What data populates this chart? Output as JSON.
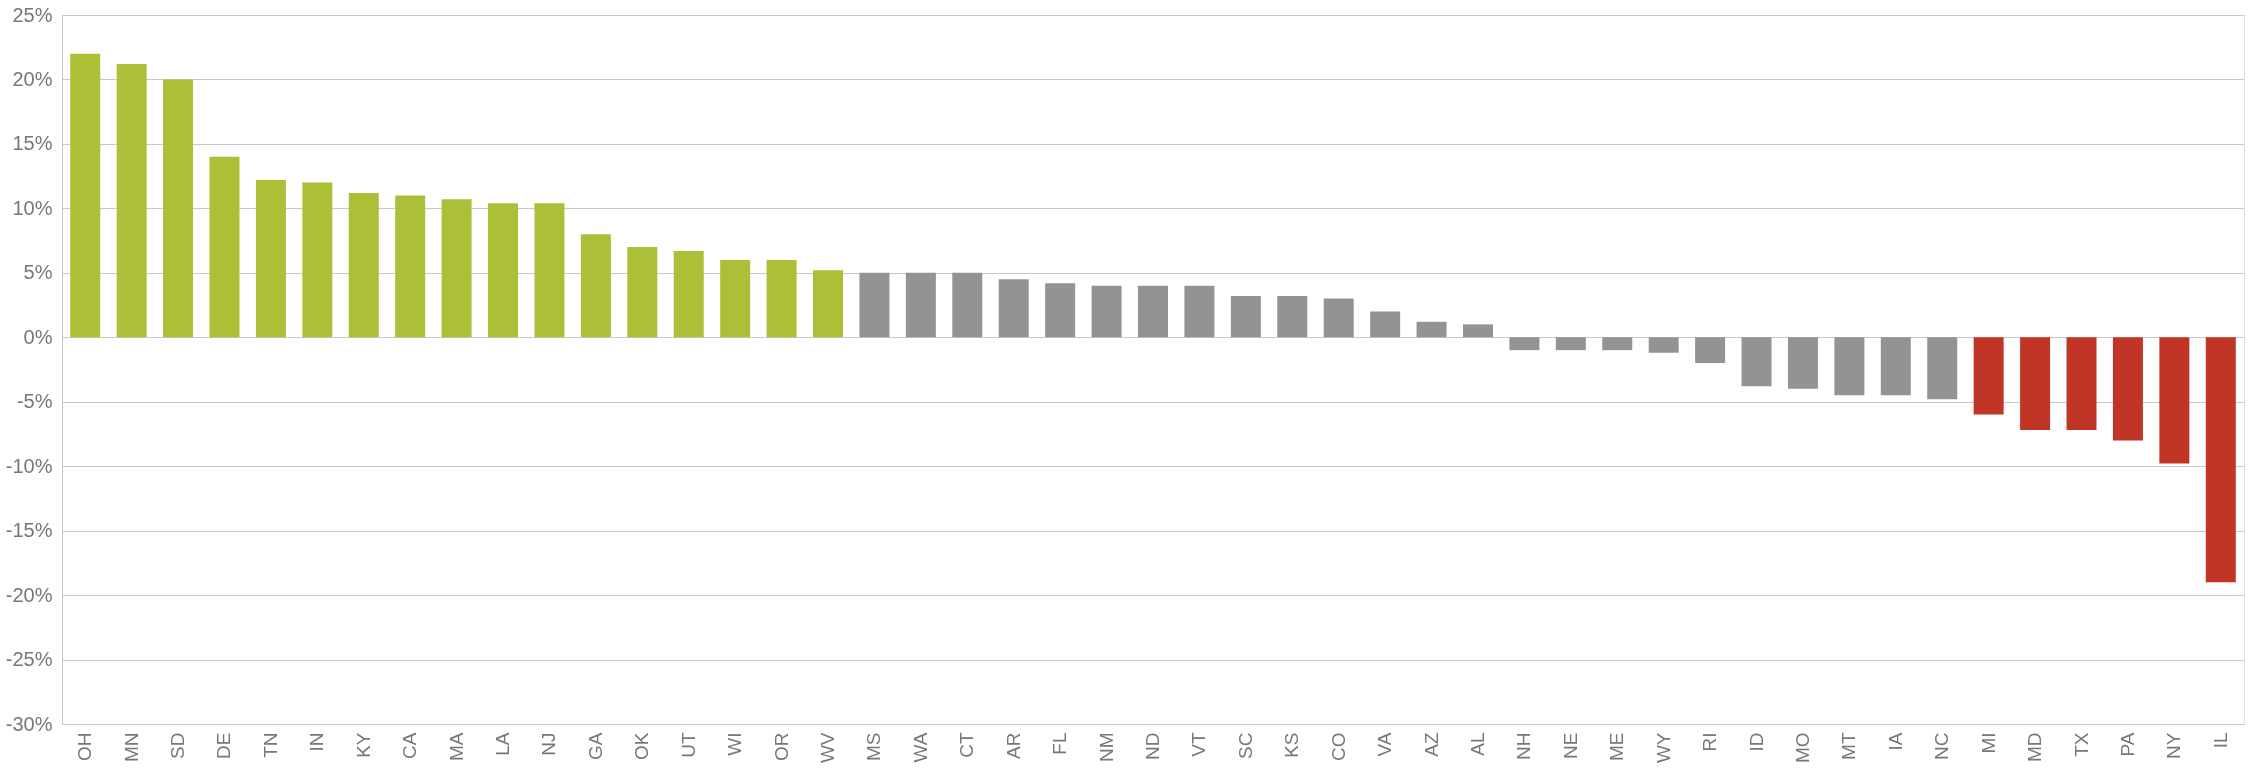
{
  "chart_data": {
    "type": "bar",
    "categories": [
      "OH",
      "MN",
      "SD",
      "DE",
      "TN",
      "IN",
      "KY",
      "CA",
      "MA",
      "LA",
      "NJ",
      "GA",
      "OK",
      "UT",
      "WI",
      "OR",
      "WV",
      "MS",
      "WA",
      "CT",
      "AR",
      "FL",
      "NM",
      "ND",
      "VT",
      "SC",
      "KS",
      "CO",
      "VA",
      "AZ",
      "AL",
      "NH",
      "NE",
      "ME",
      "WY",
      "RI",
      "ID",
      "MO",
      "MT",
      "IA",
      "NC",
      "MI",
      "MD",
      "TX",
      "PA",
      "NY",
      "IL"
    ],
    "values": [
      22,
      21.2,
      20,
      14,
      12.2,
      12,
      11.2,
      11,
      10.7,
      10.4,
      10.4,
      8,
      7,
      6.7,
      6,
      6,
      5.2,
      5,
      5,
      5,
      4.5,
      4.2,
      4,
      4,
      4,
      3.2,
      3.2,
      3,
      2,
      1.2,
      1,
      -1,
      -1,
      -1,
      -1.2,
      -2,
      -3.8,
      -4,
      -4.5,
      -4.5,
      -4.8,
      -6,
      -7.2,
      -7.2,
      -8,
      -9.8,
      -19
    ],
    "colors": [
      "#adbe37",
      "#adbe37",
      "#adbe37",
      "#adbe37",
      "#adbe37",
      "#adbe37",
      "#adbe37",
      "#adbe37",
      "#adbe37",
      "#adbe37",
      "#adbe37",
      "#adbe37",
      "#adbe37",
      "#adbe37",
      "#adbe37",
      "#adbe37",
      "#adbe37",
      "#939393",
      "#939393",
      "#939393",
      "#939393",
      "#939393",
      "#939393",
      "#939393",
      "#939393",
      "#939393",
      "#939393",
      "#939393",
      "#939393",
      "#939393",
      "#939393",
      "#939393",
      "#939393",
      "#939393",
      "#939393",
      "#939393",
      "#939393",
      "#939393",
      "#939393",
      "#939393",
      "#939393",
      "#c03525",
      "#c03525",
      "#c03525",
      "#c03525",
      "#c03525",
      "#c03525"
    ],
    "ylim": [
      -30,
      25
    ],
    "yticks": [
      {
        "value": 25,
        "label": "25%"
      },
      {
        "value": 20,
        "label": "20%"
      },
      {
        "value": 15,
        "label": "15%"
      },
      {
        "value": 10,
        "label": "10%"
      },
      {
        "value": 5,
        "label": "5%"
      },
      {
        "value": 0,
        "label": "0%"
      },
      {
        "value": -5,
        "label": "-5%"
      },
      {
        "value": -10,
        "label": "-10%"
      },
      {
        "value": -15,
        "label": "-15%"
      },
      {
        "value": -20,
        "label": "-20%"
      },
      {
        "value": -25,
        "label": "-25%"
      },
      {
        "value": -30,
        "label": "-30%"
      }
    ],
    "grid": "y"
  }
}
